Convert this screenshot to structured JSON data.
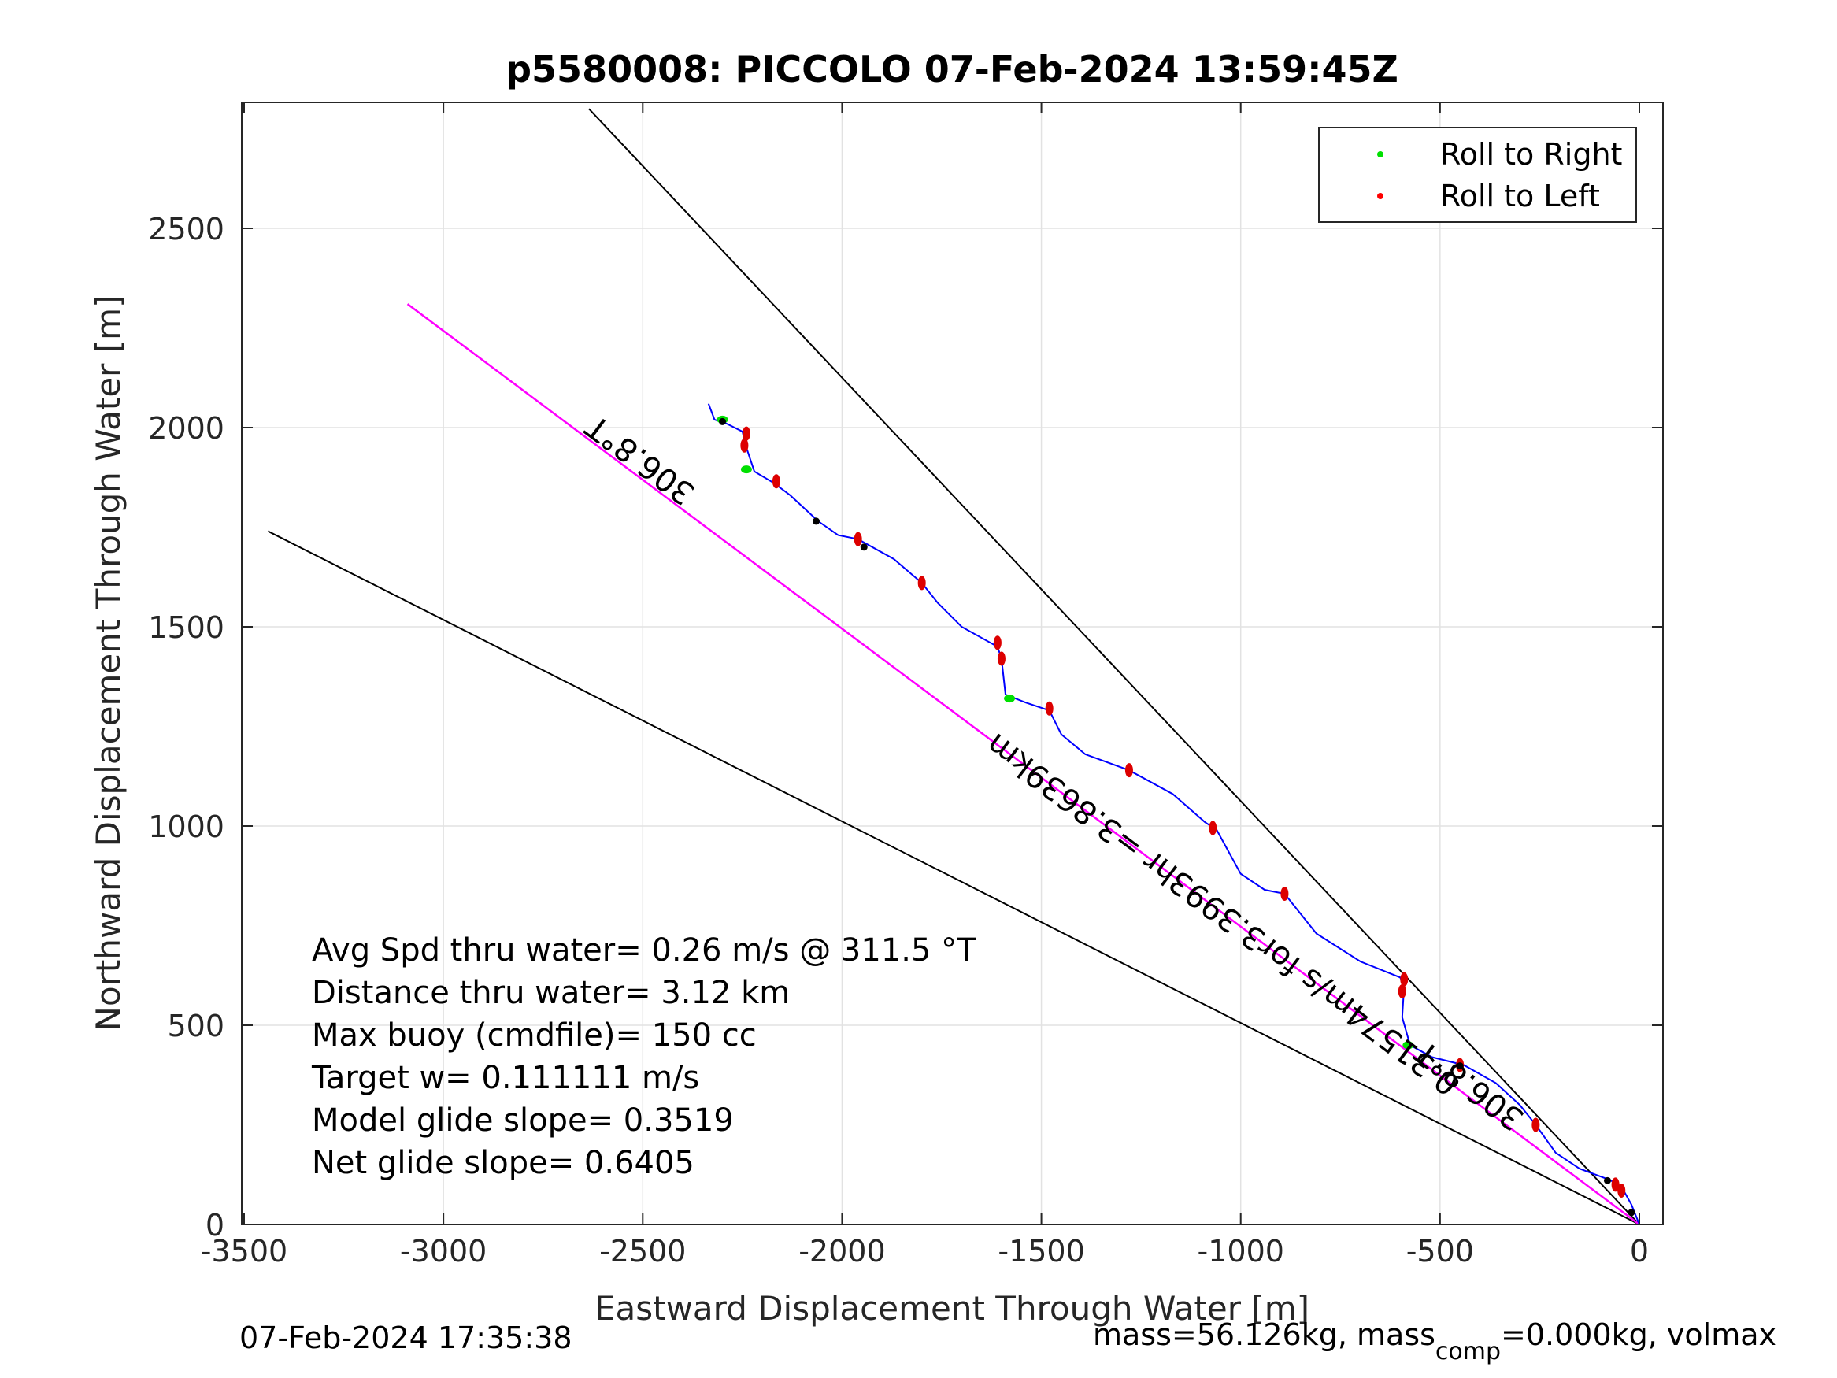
{
  "chart_data": {
    "type": "scatter",
    "title": "p5580008: PICCOLO 07-Feb-2024 13:59:45Z",
    "xlabel": "Eastward Displacement Through Water [m]",
    "ylabel": "Northward Displacement Through Water [m]",
    "xlim": [
      -3500,
      0
    ],
    "ylim": [
      0,
      2800
    ],
    "xticks": [
      "-3500",
      "-3000",
      "-2500",
      "-2000",
      "-1500",
      "-1000",
      "-500",
      "0"
    ],
    "yticks": [
      "0",
      "500",
      "1000",
      "1500",
      "2000",
      "2500"
    ],
    "grid": true,
    "legend": {
      "placement": "top-right",
      "entries": [
        {
          "label": "Roll to Right",
          "color": "#00e000"
        },
        {
          "label": "Roll to Left",
          "color": "#ff0000"
        }
      ]
    },
    "lines": [
      {
        "kind": "envelope",
        "color": "#000000",
        "points": [
          [
            0,
            0
          ],
          [
            -2635,
            2800
          ]
        ]
      },
      {
        "kind": "envelope",
        "color": "#000000",
        "points": [
          [
            0,
            0
          ],
          [
            -3440,
            1740
          ]
        ]
      },
      {
        "kind": "heading",
        "color": "#ff00ff",
        "points": [
          [
            0,
            0
          ],
          [
            -3090,
            2310
          ]
        ]
      }
    ],
    "track": {
      "color": "#0000ff",
      "points": [
        [
          0,
          0
        ],
        [
          -20,
          50
        ],
        [
          -45,
          95
        ],
        [
          -75,
          112
        ],
        [
          -150,
          140
        ],
        [
          -210,
          180
        ],
        [
          -260,
          250
        ],
        [
          -300,
          300
        ],
        [
          -360,
          355
        ],
        [
          -440,
          400
        ],
        [
          -520,
          420
        ],
        [
          -575,
          450
        ],
        [
          -595,
          520
        ],
        [
          -590,
          600
        ],
        [
          -600,
          620
        ],
        [
          -700,
          660
        ],
        [
          -810,
          730
        ],
        [
          -890,
          830
        ],
        [
          -940,
          840
        ],
        [
          -1000,
          880
        ],
        [
          -1060,
          990
        ],
        [
          -1090,
          1010
        ],
        [
          -1170,
          1080
        ],
        [
          -1280,
          1140
        ],
        [
          -1390,
          1180
        ],
        [
          -1450,
          1230
        ],
        [
          -1480,
          1290
        ],
        [
          -1540,
          1310
        ],
        [
          -1590,
          1330
        ],
        [
          -1600,
          1420
        ],
        [
          -1610,
          1450
        ],
        [
          -1700,
          1500
        ],
        [
          -1760,
          1560
        ],
        [
          -1800,
          1610
        ],
        [
          -1870,
          1670
        ],
        [
          -1960,
          1720
        ],
        [
          -2010,
          1730
        ],
        [
          -2060,
          1765
        ],
        [
          -2130,
          1830
        ],
        [
          -2170,
          1860
        ],
        [
          -2220,
          1890
        ],
        [
          -2240,
          1950
        ],
        [
          -2250,
          1990
        ],
        [
          -2290,
          2010
        ],
        [
          -2320,
          2020
        ],
        [
          -2335,
          2060
        ]
      ]
    },
    "roll_right": [
      [
        -2300,
        2020
      ],
      [
        -2240,
        1895
      ],
      [
        -1580,
        1320
      ],
      [
        -580,
        450
      ]
    ],
    "roll_left": [
      [
        -2240,
        1985
      ],
      [
        -2245,
        1955
      ],
      [
        -2165,
        1865
      ],
      [
        -1960,
        1720
      ],
      [
        -1800,
        1610
      ],
      [
        -1610,
        1460
      ],
      [
        -1600,
        1420
      ],
      [
        -1480,
        1295
      ],
      [
        -1280,
        1140
      ],
      [
        -1070,
        995
      ],
      [
        -890,
        830
      ],
      [
        -590,
        615
      ],
      [
        -595,
        585
      ],
      [
        -450,
        400
      ],
      [
        -260,
        250
      ],
      [
        -60,
        100
      ],
      [
        -45,
        85
      ]
    ],
    "black_marks": [
      [
        -2300,
        2015
      ],
      [
        -2065,
        1765
      ],
      [
        -1945,
        1700
      ],
      [
        -450,
        398
      ],
      [
        -80,
        110
      ],
      [
        -20,
        30
      ]
    ],
    "annotations": [
      {
        "text": "306.8°T",
        "x": -2490,
        "y": 1940,
        "rotation": 216.8
      },
      {
        "text": "306.8°T",
        "x": -410,
        "y": 370,
        "rotation": 216.8
      },
      {
        "text": "0.31574m/s for3.3993hr =3.8639km",
        "x": -1030,
        "y": 800,
        "rotation": 216.8
      }
    ],
    "stats": [
      "Avg Spd thru water=  0.26 m/s @ 311.5 °T",
      "Distance thru water=  3.12 km",
      "Max buoy (cmdfile)= 150 cc",
      "Target w= 0.111111 m/s",
      "Model glide slope= 0.3519",
      "Net glide slope= 0.6405"
    ]
  },
  "footer": {
    "date": "07-Feb-2024 17:35:38",
    "mass_prefix": "mass=56.126kg, mass",
    "mass_sub": "comp",
    "mass_suffix": "=0.000kg, volmax"
  }
}
